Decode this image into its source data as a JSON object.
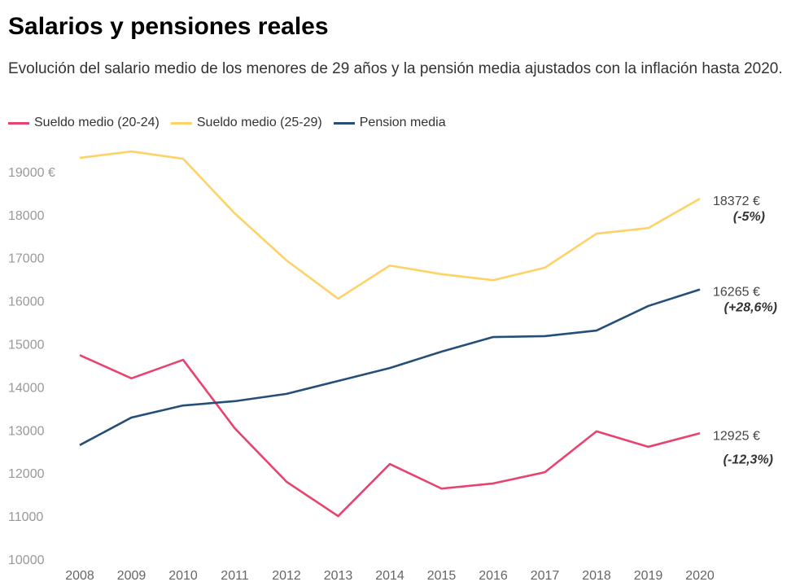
{
  "title": "Salarios y pensiones reales",
  "subtitle": "Evolución del salario medio de los menores de 29 años y la pensión media ajustados con la inflación hasta 2020.",
  "chart_data": {
    "type": "line",
    "x": [
      2008,
      2009,
      2010,
      2011,
      2012,
      2013,
      2014,
      2015,
      2016,
      2017,
      2018,
      2019,
      2020
    ],
    "ylim": [
      10000,
      19500
    ],
    "yticks": [
      10000,
      11000,
      12000,
      13000,
      14000,
      15000,
      16000,
      17000,
      18000,
      19000
    ],
    "ytick_labels": [
      "10000",
      "11000",
      "12000",
      "13000",
      "14000",
      "15000",
      "16000",
      "17000",
      "18000",
      "19000 €"
    ],
    "grid": false,
    "legend": "top-left",
    "series": [
      {
        "name": "Sueldo medio (20-24)",
        "color": "#e8436e",
        "values": [
          14740,
          14200,
          14630,
          13040,
          11800,
          11000,
          12210,
          11640,
          11760,
          12020,
          12970,
          12610,
          12925
        ],
        "end_label": "12925 €",
        "change_label": "(-12,3%)"
      },
      {
        "name": "Sueldo medio (25-29)",
        "color": "#fdd267",
        "values": [
          19320,
          19470,
          19300,
          18030,
          16940,
          16050,
          16820,
          16620,
          16480,
          16770,
          17560,
          17690,
          18372
        ],
        "end_label": "18372 €",
        "change_label": "(-5%)"
      },
      {
        "name": "Pension media",
        "color": "#264f78",
        "values": [
          12650,
          13290,
          13570,
          13670,
          13840,
          14140,
          14440,
          14820,
          15160,
          15180,
          15310,
          15880,
          16265
        ],
        "end_label": "16265 €",
        "change_label": "(+28,6%)"
      }
    ]
  }
}
